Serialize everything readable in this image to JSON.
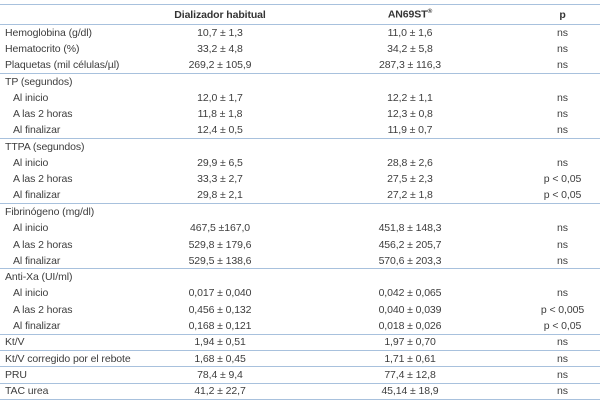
{
  "page": {
    "background": "#ffffff",
    "rule_color": "#a8c1dd",
    "text_color": "#3d3d3d"
  },
  "table": {
    "header": {
      "col1": "",
      "col2": "Dializador habitual",
      "col3": "AN69ST",
      "col3_sup": "®",
      "col4": "p"
    },
    "rows": [
      {
        "label": "Hemoglobina (g/dl)",
        "section": false,
        "indent": false,
        "habitual": "10,7 ± 1,3",
        "an69st": "11,0 ± 1,6",
        "p": "ns",
        "rule_below": false
      },
      {
        "label": "Hematocrito (%)",
        "section": false,
        "indent": false,
        "habitual": "33,2 ± 4,8",
        "an69st": "34,2 ± 5,8",
        "p": "ns",
        "rule_below": false
      },
      {
        "label": "Plaquetas (mil células/µl)",
        "section": false,
        "indent": false,
        "habitual": "269,2 ± 105,9",
        "an69st": "287,3 ± 116,3",
        "p": "ns",
        "rule_below": true
      },
      {
        "label": "TP (segundos)",
        "section": true,
        "indent": false,
        "habitual": "",
        "an69st": "",
        "p": "",
        "rule_below": false
      },
      {
        "label": "Al inicio",
        "section": false,
        "indent": true,
        "habitual": "12,0 ± 1,7",
        "an69st": "12,2 ± 1,1",
        "p": "ns",
        "rule_below": false
      },
      {
        "label": "A las 2 horas",
        "section": false,
        "indent": true,
        "habitual": "11,8 ± 1,8",
        "an69st": "12,3 ± 0,8",
        "p": "ns",
        "rule_below": false
      },
      {
        "label": "Al finalizar",
        "section": false,
        "indent": true,
        "habitual": "12,4 ± 0,5",
        "an69st": "11,9 ± 0,7",
        "p": "ns",
        "rule_below": true
      },
      {
        "label": "TTPA (segundos)",
        "section": true,
        "indent": false,
        "habitual": "",
        "an69st": "",
        "p": "",
        "rule_below": false
      },
      {
        "label": "Al inicio",
        "section": false,
        "indent": true,
        "habitual": "29,9 ± 6,5",
        "an69st": "28,8 ± 2,6",
        "p": "ns",
        "rule_below": false
      },
      {
        "label": "A las 2 horas",
        "section": false,
        "indent": true,
        "habitual": "33,3 ± 2,7",
        "an69st": "27,5 ± 2,3",
        "p": "p < 0,05",
        "rule_below": false
      },
      {
        "label": "Al finalizar",
        "section": false,
        "indent": true,
        "habitual": "29,8 ± 2,1",
        "an69st": "27,2 ± 1,8",
        "p": "p < 0,05",
        "rule_below": true
      },
      {
        "label": "Fibrinógeno (mg/dl)",
        "section": true,
        "indent": false,
        "habitual": "",
        "an69st": "",
        "p": "",
        "rule_below": false
      },
      {
        "label": "Al inicio",
        "section": false,
        "indent": true,
        "habitual": "467,5 ±167,0",
        "an69st": "451,8 ± 148,3",
        "p": "ns",
        "rule_below": false
      },
      {
        "label": "A las 2 horas",
        "section": false,
        "indent": true,
        "habitual": "529,8 ± 179,6",
        "an69st": "456,2 ± 205,7",
        "p": "ns",
        "rule_below": false
      },
      {
        "label": "Al finalizar",
        "section": false,
        "indent": true,
        "habitual": "529,5 ± 138,6",
        "an69st": "570,6 ± 203,3",
        "p": "ns",
        "rule_below": true
      },
      {
        "label": "Anti-Xa (UI/ml)",
        "section": true,
        "indent": false,
        "habitual": "",
        "an69st": "",
        "p": "",
        "rule_below": false
      },
      {
        "label": "Al inicio",
        "section": false,
        "indent": true,
        "habitual": "0,017 ± 0,040",
        "an69st": "0,042 ± 0,065",
        "p": "ns",
        "rule_below": false
      },
      {
        "label": "A las 2 horas",
        "section": false,
        "indent": true,
        "habitual": "0,456 ± 0,132",
        "an69st": "0,040 ± 0,039",
        "p": "p < 0,005",
        "rule_below": false
      },
      {
        "label": "Al finalizar",
        "section": false,
        "indent": true,
        "habitual": "0,168 ± 0,121",
        "an69st": "0,018 ± 0,026",
        "p": "p < 0,05",
        "rule_below": true
      },
      {
        "label": "Kt/V",
        "section": false,
        "indent": false,
        "habitual": "1,94 ± 0,51",
        "an69st": "1,97 ± 0,70",
        "p": "ns",
        "rule_below": true
      },
      {
        "label": "Kt/V corregido por el rebote",
        "section": false,
        "indent": false,
        "habitual": "1,68 ± 0,45",
        "an69st": "1,71 ± 0,61",
        "p": "ns",
        "rule_below": true
      },
      {
        "label": "PRU",
        "section": false,
        "indent": false,
        "habitual": "78,4 ± 9,4",
        "an69st": "77,4 ± 12,8",
        "p": "ns",
        "rule_below": true
      },
      {
        "label": "TAC urea",
        "section": false,
        "indent": false,
        "habitual": "41,2 ± 22,7",
        "an69st": "45,14 ± 18,9",
        "p": "ns",
        "rule_below": true
      }
    ]
  }
}
